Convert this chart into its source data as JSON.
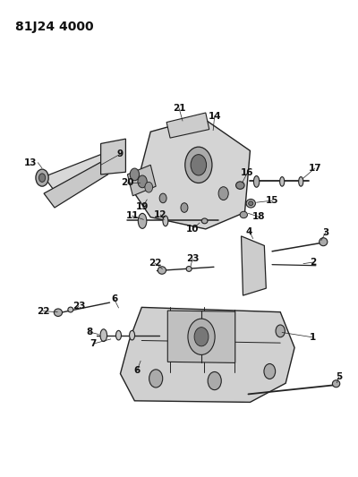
{
  "title": "81J24 4000",
  "bg_color": "#ffffff",
  "fig_width": 4.0,
  "fig_height": 5.33,
  "dpi": 100,
  "line_color": "#222222",
  "label_color": "#111111",
  "label_fontsize": 7.5,
  "title_fontsize": 10
}
